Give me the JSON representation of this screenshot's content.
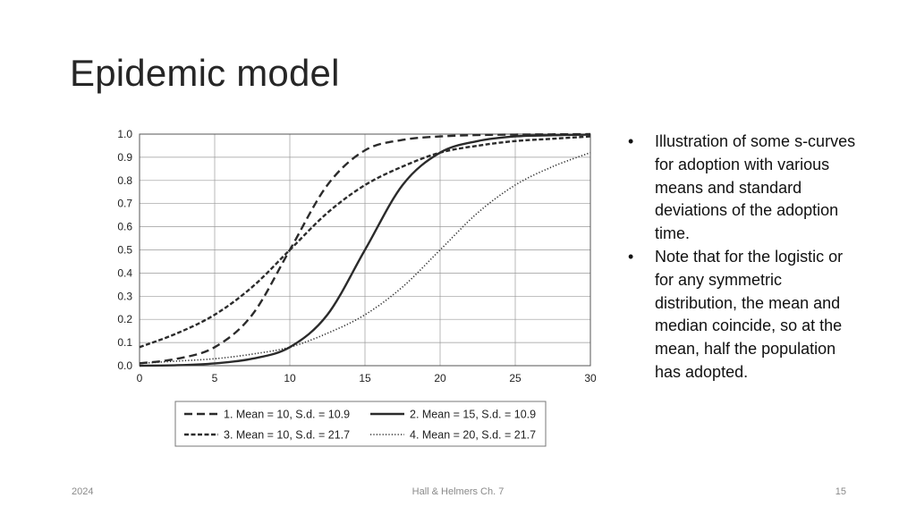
{
  "slide": {
    "title": "Epidemic model",
    "bullets": [
      "Illustration of some s-curves for adoption with various means and standard deviations of the adoption time.",
      "Note that for the logistic or for any symmetric distribution, the mean and median coincide, so at the mean, half the population has adopted."
    ],
    "footer": {
      "date": "2024",
      "source": "Hall & Helmers Ch. 7",
      "page": "15"
    }
  },
  "chart_data": {
    "type": "line",
    "title": "",
    "xlabel": "",
    "ylabel": "",
    "xlim": [
      0,
      30
    ],
    "ylim": [
      0,
      1
    ],
    "x_ticks": [
      "0",
      "5",
      "10",
      "15",
      "20",
      "25",
      "30"
    ],
    "y_ticks": [
      "0.0",
      "0.1",
      "0.2",
      "0.3",
      "0.4",
      "0.5",
      "0.6",
      "0.7",
      "0.8",
      "0.9",
      "1.0"
    ],
    "grid": true,
    "legend_position": "bottom",
    "x": [
      0,
      2.5,
      5,
      7.5,
      10,
      12.5,
      15,
      17.5,
      20,
      22.5,
      25,
      27.5,
      30
    ],
    "series": [
      {
        "name": "1. Mean = 10, S.d. = 10.9",
        "style": "dashed",
        "color": "#2b2b2b",
        "values": [
          0.01,
          0.03,
          0.08,
          0.22,
          0.5,
          0.78,
          0.93,
          0.975,
          0.99,
          0.996,
          0.998,
          0.999,
          1.0
        ]
      },
      {
        "name": "2. Mean = 15, S.d. = 10.9",
        "style": "solid",
        "color": "#2b2b2b",
        "values": [
          0.0,
          0.002,
          0.01,
          0.03,
          0.08,
          0.22,
          0.5,
          0.78,
          0.92,
          0.97,
          0.99,
          0.995,
          0.998
        ]
      },
      {
        "name": "3. Mean = 10, S.d. = 21.7",
        "style": "dense-dashed",
        "color": "#2b2b2b",
        "values": [
          0.08,
          0.14,
          0.22,
          0.34,
          0.5,
          0.66,
          0.78,
          0.86,
          0.92,
          0.95,
          0.97,
          0.98,
          0.99
        ]
      },
      {
        "name": "4. Mean = 20, S.d. = 21.7",
        "style": "dotted",
        "color": "#2b2b2b",
        "values": [
          0.01,
          0.02,
          0.03,
          0.05,
          0.08,
          0.14,
          0.22,
          0.34,
          0.5,
          0.66,
          0.78,
          0.86,
          0.92
        ]
      }
    ]
  }
}
